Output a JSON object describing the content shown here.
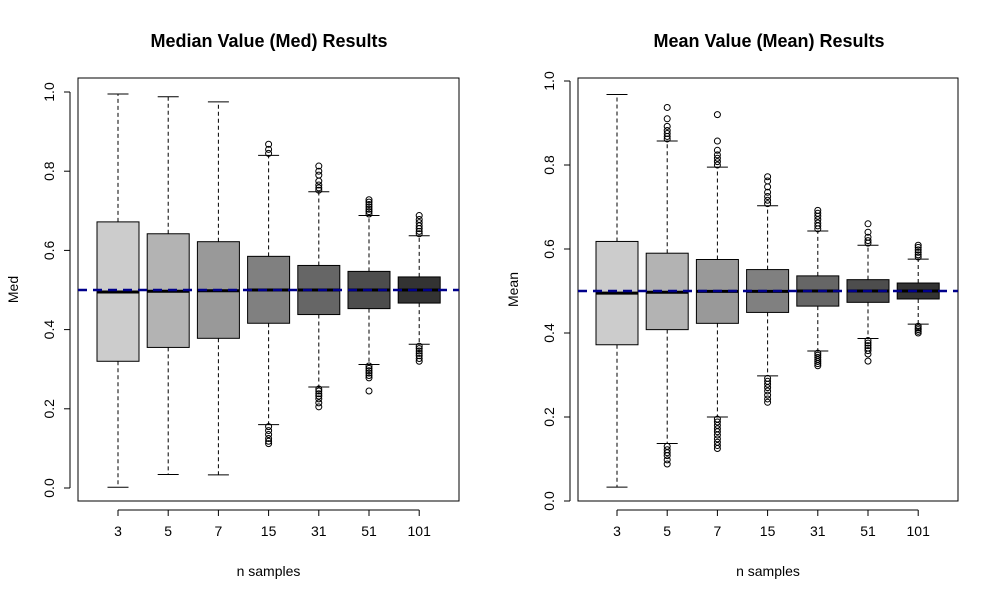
{
  "chart_data": [
    {
      "type": "box",
      "title": "Median Value (Med) Results",
      "xlabel": "n samples",
      "ylabel": "Med",
      "ylim": [
        0,
        1
      ],
      "yticks": [
        "0.0",
        "0.2",
        "0.4",
        "0.6",
        "0.8",
        "1.0"
      ],
      "reference_line": {
        "y": 0.5,
        "color": "#00008b",
        "style": "dashed"
      },
      "categories": [
        "3",
        "5",
        "7",
        "15",
        "31",
        "51",
        "101"
      ],
      "boxes": [
        {
          "category": "3",
          "fill": "#cccccc",
          "q1": 0.32,
          "median": 0.495,
          "q3": 0.672,
          "whisker_low": 0.002,
          "whisker_high": 0.995,
          "outliers": []
        },
        {
          "category": "5",
          "fill": "#b3b3b3",
          "q1": 0.355,
          "median": 0.497,
          "q3": 0.642,
          "whisker_low": 0.034,
          "whisker_high": 0.988,
          "outliers": []
        },
        {
          "category": "7",
          "fill": "#999999",
          "q1": 0.378,
          "median": 0.498,
          "q3": 0.622,
          "whisker_low": 0.033,
          "whisker_high": 0.975,
          "outliers": []
        },
        {
          "category": "15",
          "fill": "#808080",
          "q1": 0.416,
          "median": 0.5,
          "q3": 0.585,
          "whisker_low": 0.16,
          "whisker_high": 0.84,
          "outliers": [
            0.155,
            0.145,
            0.135,
            0.125,
            0.118,
            0.112,
            0.845,
            0.855,
            0.868
          ]
        },
        {
          "category": "31",
          "fill": "#666666",
          "q1": 0.438,
          "median": 0.5,
          "q3": 0.562,
          "whisker_low": 0.255,
          "whisker_high": 0.748,
          "outliers": [
            0.25,
            0.245,
            0.238,
            0.232,
            0.225,
            0.215,
            0.205,
            0.752,
            0.758,
            0.765,
            0.775,
            0.79,
            0.8,
            0.813
          ]
        },
        {
          "category": "51",
          "fill": "#4d4d4d",
          "q1": 0.453,
          "median": 0.5,
          "q3": 0.547,
          "whisker_low": 0.312,
          "whisker_high": 0.688,
          "outliers": [
            0.308,
            0.302,
            0.296,
            0.29,
            0.284,
            0.278,
            0.245,
            0.692,
            0.698,
            0.704,
            0.71,
            0.716,
            0.722,
            0.728
          ]
        },
        {
          "category": "101",
          "fill": "#333333",
          "q1": 0.467,
          "median": 0.5,
          "q3": 0.533,
          "whisker_low": 0.363,
          "whisker_high": 0.637,
          "outliers": [
            0.358,
            0.352,
            0.346,
            0.34,
            0.334,
            0.327,
            0.32,
            0.642,
            0.648,
            0.655,
            0.662,
            0.67,
            0.678,
            0.688
          ]
        }
      ]
    },
    {
      "type": "box",
      "title": "Mean Value (Mean) Results",
      "xlabel": "n samples",
      "ylabel": "Mean",
      "ylim": [
        0,
        1
      ],
      "yticks": [
        "0.0",
        "0.2",
        "0.4",
        "0.6",
        "0.8",
        "1.0"
      ],
      "reference_line": {
        "y": 0.5,
        "color": "#00008b",
        "style": "dashed"
      },
      "categories": [
        "3",
        "5",
        "7",
        "15",
        "31",
        "51",
        "101"
      ],
      "boxes": [
        {
          "category": "3",
          "fill": "#cccccc",
          "q1": 0.372,
          "median": 0.495,
          "q3": 0.618,
          "whisker_low": 0.033,
          "whisker_high": 0.968,
          "outliers": []
        },
        {
          "category": "5",
          "fill": "#b3b3b3",
          "q1": 0.408,
          "median": 0.497,
          "q3": 0.59,
          "whisker_low": 0.137,
          "whisker_high": 0.857,
          "outliers": [
            0.13,
            0.122,
            0.115,
            0.108,
            0.098,
            0.088,
            0.862,
            0.868,
            0.875,
            0.882,
            0.892,
            0.91,
            0.937
          ]
        },
        {
          "category": "7",
          "fill": "#999999",
          "q1": 0.423,
          "median": 0.499,
          "q3": 0.575,
          "whisker_low": 0.2,
          "whisker_high": 0.795,
          "outliers": [
            0.195,
            0.188,
            0.18,
            0.172,
            0.165,
            0.157,
            0.148,
            0.14,
            0.132,
            0.125,
            0.8,
            0.808,
            0.816,
            0.824,
            0.835,
            0.857,
            0.92
          ]
        },
        {
          "category": "15",
          "fill": "#808080",
          "q1": 0.449,
          "median": 0.499,
          "q3": 0.551,
          "whisker_low": 0.298,
          "whisker_high": 0.703,
          "outliers": [
            0.292,
            0.285,
            0.278,
            0.27,
            0.262,
            0.252,
            0.243,
            0.235,
            0.708,
            0.716,
            0.725,
            0.735,
            0.748,
            0.762,
            0.772
          ]
        },
        {
          "category": "31",
          "fill": "#666666",
          "q1": 0.464,
          "median": 0.5,
          "q3": 0.536,
          "whisker_low": 0.357,
          "whisker_high": 0.643,
          "outliers": [
            0.352,
            0.347,
            0.342,
            0.337,
            0.332,
            0.327,
            0.322,
            0.648,
            0.655,
            0.662,
            0.67,
            0.678,
            0.685,
            0.692
          ]
        },
        {
          "category": "51",
          "fill": "#4d4d4d",
          "q1": 0.473,
          "median": 0.5,
          "q3": 0.527,
          "whisker_low": 0.387,
          "whisker_high": 0.609,
          "outliers": [
            0.382,
            0.376,
            0.37,
            0.364,
            0.358,
            0.35,
            0.333,
            0.614,
            0.62,
            0.628,
            0.64,
            0.66
          ]
        },
        {
          "category": "101",
          "fill": "#333333",
          "q1": 0.481,
          "median": 0.5,
          "q3": 0.519,
          "whisker_low": 0.421,
          "whisker_high": 0.576,
          "outliers": [
            0.416,
            0.412,
            0.408,
            0.404,
            0.4,
            0.581,
            0.586,
            0.592,
            0.598,
            0.604,
            0.609
          ]
        }
      ]
    }
  ]
}
